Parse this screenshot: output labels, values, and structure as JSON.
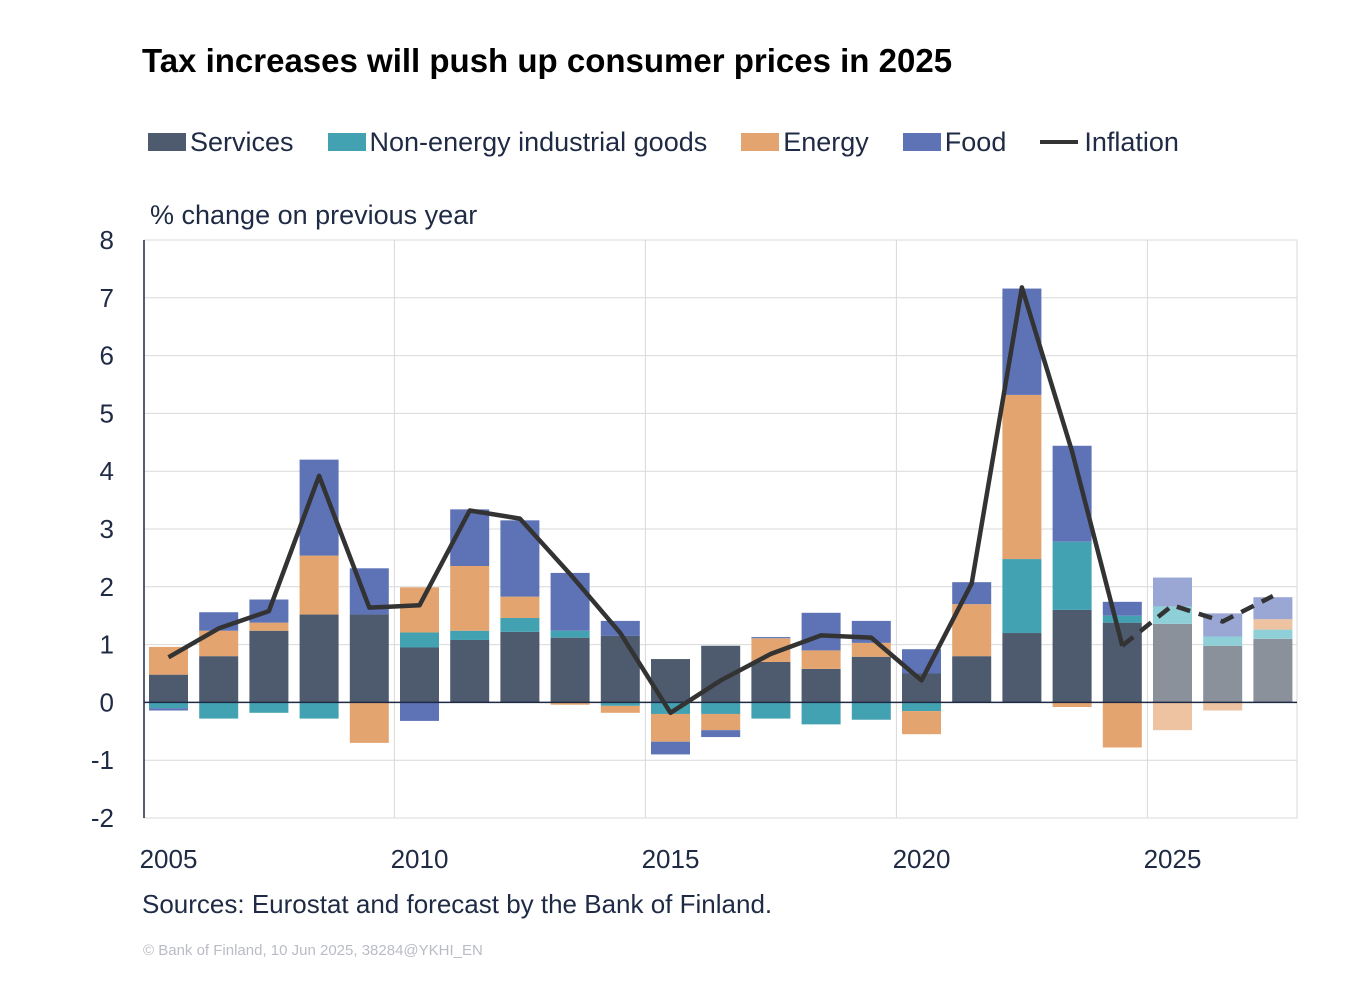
{
  "title": "Tax increases will push up consumer prices in 2025",
  "legend": [
    {
      "label": "Services",
      "kind": "box",
      "color": "#4e5b6e"
    },
    {
      "label": "Non-energy industrial goods",
      "kind": "box",
      "color": "#43a2b1"
    },
    {
      "label": "Energy",
      "kind": "box",
      "color": "#e3a46f"
    },
    {
      "label": "Food",
      "kind": "box",
      "color": "#5d73b6"
    },
    {
      "label": "Inflation",
      "kind": "line",
      "color": "#333333"
    }
  ],
  "ylabel": "% change on previous year",
  "source": "Sources: Eurostat and forecast by the Bank of Finland.",
  "copyright": "© Bank of Finland, 10 Jun 2025, 38284@YKHI_EN",
  "chart_data": {
    "type": "bar",
    "stacked": true,
    "categories": [
      "2005",
      "2006",
      "2007",
      "2008",
      "2009",
      "2010",
      "2011",
      "2012",
      "2013",
      "2014",
      "2015",
      "2016",
      "2017",
      "2018",
      "2019",
      "2020",
      "2021",
      "2022",
      "2023",
      "2024",
      "2025",
      "2026",
      "2027"
    ],
    "xticks": [
      "2005",
      "2010",
      "2015",
      "2020",
      "2025"
    ],
    "yticks": [
      "8",
      "7",
      "6",
      "5",
      "4",
      "3",
      "2",
      "1",
      "0",
      "-1",
      "-2"
    ],
    "ylim": [
      -2,
      8
    ],
    "grid": true,
    "forecast_from": "2025",
    "series": [
      {
        "name": "Services",
        "color": "#4e5b6e",
        "forecast_color": "#8a919b",
        "values": [
          0.48,
          0.8,
          1.24,
          1.52,
          1.52,
          0.95,
          1.08,
          1.22,
          1.12,
          1.15,
          0.75,
          0.98,
          0.7,
          0.58,
          0.79,
          0.5,
          0.8,
          1.2,
          1.6,
          1.38,
          1.36,
          0.98,
          1.1
        ]
      },
      {
        "name": "Non-energy industrial goods",
        "color": "#43a2b1",
        "forecast_color": "#8fd0d8",
        "values": [
          -0.1,
          -0.28,
          -0.18,
          -0.28,
          0.0,
          0.26,
          0.16,
          0.24,
          0.12,
          -0.06,
          -0.2,
          -0.2,
          -0.28,
          -0.38,
          -0.3,
          -0.15,
          0.0,
          1.28,
          1.18,
          0.12,
          0.3,
          0.16,
          0.16
        ]
      },
      {
        "name": "Energy",
        "color": "#e3a46f",
        "forecast_color": "#eec3a2",
        "values": [
          0.48,
          0.44,
          0.14,
          1.02,
          -0.7,
          0.78,
          1.12,
          0.37,
          -0.04,
          -0.12,
          -0.48,
          -0.28,
          0.41,
          0.32,
          0.24,
          -0.4,
          0.9,
          2.84,
          -0.08,
          -0.78,
          -0.48,
          -0.14,
          0.18
        ]
      },
      {
        "name": "Food",
        "color": "#5d73b6",
        "forecast_color": "#9aa7d4",
        "values": [
          -0.04,
          0.32,
          0.4,
          1.66,
          0.8,
          -0.32,
          0.98,
          1.32,
          1.0,
          0.26,
          -0.22,
          -0.12,
          0.02,
          0.65,
          0.38,
          0.42,
          0.38,
          1.84,
          1.66,
          0.24,
          0.5,
          0.4,
          0.38
        ]
      }
    ],
    "line": {
      "name": "Inflation",
      "color": "#333333",
      "values": [
        0.78,
        1.28,
        1.58,
        3.92,
        1.64,
        1.68,
        3.32,
        3.18,
        2.22,
        1.2,
        -0.18,
        0.38,
        0.84,
        1.16,
        1.12,
        0.38,
        2.06,
        7.18,
        4.34,
        0.98,
        1.68,
        1.4,
        1.84
      ]
    }
  }
}
